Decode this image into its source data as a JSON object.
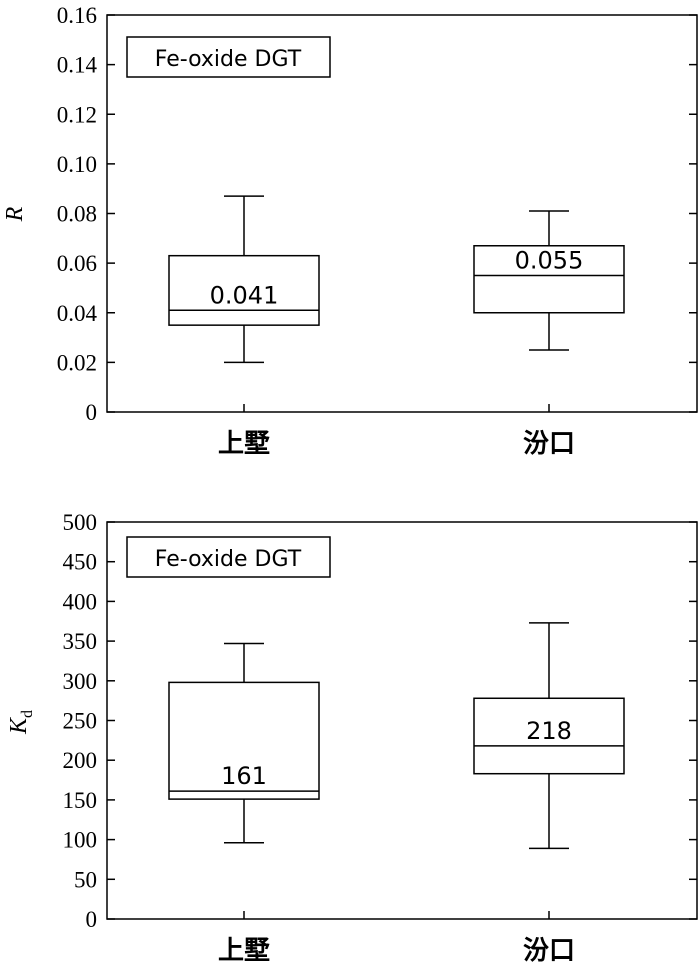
{
  "chart_data": [
    {
      "type": "box",
      "legend_label": "Fe-oxide DGT",
      "ylabel": "R",
      "categories": [
        "上墅",
        "汾口"
      ],
      "ylim": [
        0,
        0.16
      ],
      "yticks": [
        0,
        0.02,
        0.04,
        0.06,
        0.08,
        0.1,
        0.12,
        0.14,
        0.16
      ],
      "ytick_labels": [
        "0",
        "0.02",
        "0.04",
        "0.06",
        "0.08",
        "0.10",
        "0.12",
        "0.14",
        "0.16"
      ],
      "boxes": [
        {
          "category": "上墅",
          "min": 0.02,
          "q1": 0.035,
          "median": 0.041,
          "q3": 0.063,
          "max": 0.087,
          "label": "0.041"
        },
        {
          "category": "汾口",
          "min": 0.025,
          "q1": 0.04,
          "median": 0.055,
          "q3": 0.067,
          "max": 0.081,
          "label": "0.055"
        }
      ]
    },
    {
      "type": "box",
      "legend_label": "Fe-oxide DGT",
      "ylabel_main": "K",
      "ylabel_sub": "d",
      "categories": [
        "上墅",
        "汾口"
      ],
      "ylim": [
        0,
        500
      ],
      "yticks": [
        0,
        50,
        100,
        150,
        200,
        250,
        300,
        350,
        400,
        450,
        500
      ],
      "ytick_labels": [
        "0",
        "50",
        "100",
        "150",
        "200",
        "250",
        "300",
        "350",
        "400",
        "450",
        "500"
      ],
      "boxes": [
        {
          "category": "上墅",
          "min": 96,
          "q1": 151,
          "median": 161,
          "q3": 298,
          "max": 347,
          "label": "161"
        },
        {
          "category": "汾口",
          "min": 89,
          "q1": 183,
          "median": 218,
          "q3": 278,
          "max": 373,
          "label": "218"
        }
      ]
    }
  ]
}
